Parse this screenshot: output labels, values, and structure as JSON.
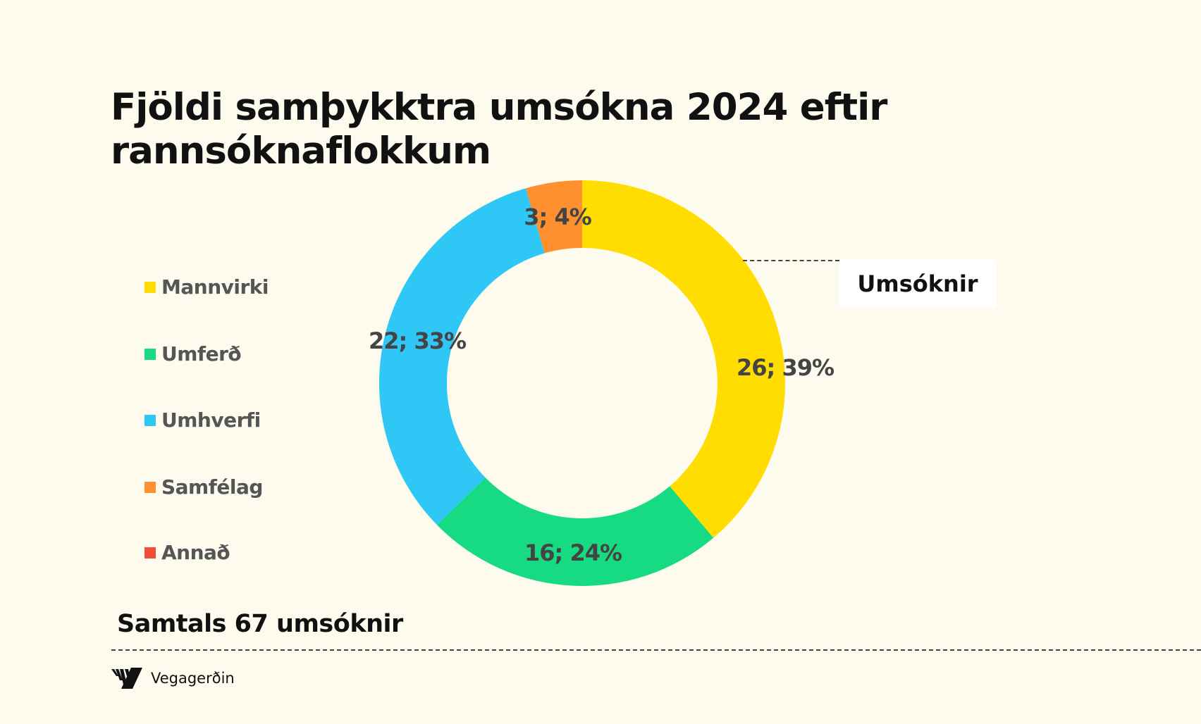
{
  "title_line1": "Fjöldi samþykktra umsókna 2024 eftir",
  "title_line2": "rannsóknaflokkum",
  "series_label": "Umsóknir",
  "total_text": "Samtals 67 umsóknir",
  "logo": {
    "text": "Vegagerðin",
    "icon": "vegagerdin-logo-icon"
  },
  "chart_data": {
    "type": "pie",
    "variant": "donut",
    "title": "Fjöldi samþykktra umsókna 2024 eftir rannsóknaflokkum",
    "series_name": "Umsóknir",
    "legend_placement": "left",
    "categories": [
      "Mannvirki",
      "Umferð",
      "Umhverfi",
      "Samfélag",
      "Annað"
    ],
    "values": [
      26,
      16,
      22,
      3,
      0
    ],
    "colors": [
      "#FFDD00",
      "#16DB82",
      "#2FC7F5",
      "#FF9030",
      "#F04E3A"
    ],
    "data_labels": [
      "26; 39%",
      "16; 24%",
      "22; 33%",
      "3; 4%",
      ""
    ]
  },
  "background": "#FDFAEE"
}
